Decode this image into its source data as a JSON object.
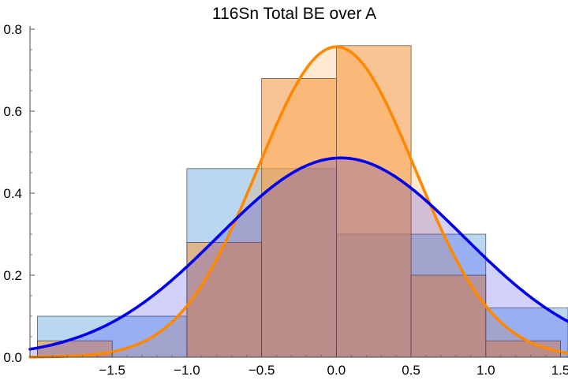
{
  "chart_data": {
    "type": "bar",
    "title": "116Sn Total BE over A",
    "xlabel": "",
    "ylabel": "",
    "xlim": [
      -2.05,
      1.55
    ],
    "ylim": [
      0,
      0.8
    ],
    "x_ticks": [
      -1.5,
      -1.0,
      -0.5,
      0.0,
      0.5,
      1.0,
      1.5
    ],
    "x_tick_labels": [
      "−1.5",
      "−1.0",
      "−0.5",
      "0.0",
      "0.5",
      "1.0",
      "1.5"
    ],
    "y_ticks": [
      0.0,
      0.2,
      0.4,
      0.6,
      0.8
    ],
    "y_tick_labels": [
      "0.0",
      "0.2",
      "0.4",
      "0.6",
      "0.8"
    ],
    "grid": false,
    "series": [
      {
        "kind": "histogram",
        "color": "#8fbfea",
        "bins": [
          {
            "x0": -2.0,
            "x1": -1.0,
            "value": 0.1
          },
          {
            "x0": -1.0,
            "x1": 0.0,
            "value": 0.46
          },
          {
            "x0": 0.0,
            "x1": 1.0,
            "value": 0.3
          },
          {
            "x0": 1.0,
            "x1": 2.0,
            "value": 0.12
          }
        ]
      },
      {
        "kind": "histogram",
        "color": "#f5a050",
        "bins": [
          {
            "x0": -2.0,
            "x1": -1.5,
            "value": 0.04
          },
          {
            "x0": -1.5,
            "x1": -1.0,
            "value": 0.0
          },
          {
            "x0": -1.0,
            "x1": -0.5,
            "value": 0.28
          },
          {
            "x0": -0.5,
            "x1": 0.0,
            "value": 0.68
          },
          {
            "x0": 0.0,
            "x1": 0.5,
            "value": 0.76
          },
          {
            "x0": 0.5,
            "x1": 1.0,
            "value": 0.2
          },
          {
            "x0": 1.0,
            "x1": 1.5,
            "value": 0.04
          }
        ]
      },
      {
        "kind": "density",
        "color": "#ff8800",
        "peak_x": 0.0,
        "peak_y": 0.757,
        "sigma": 0.527
      },
      {
        "kind": "density",
        "color": "#0000ee",
        "peak_x": 0.03,
        "peak_y": 0.486,
        "sigma": 0.82
      }
    ]
  }
}
